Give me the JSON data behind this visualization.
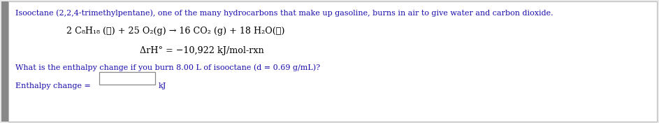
{
  "background_color": "#e8e8e8",
  "panel_color": "#ffffff",
  "text_color": "#000000",
  "blue_color": "#1a0dab",
  "left_bar_color": "#888888",
  "line1": "Isooctane (2,2,4-trimethylpentane), one of the many hydrocarbons that make up gasoline, burns in air to give water and carbon dioxide.",
  "equation": "2 C₈H₁₈ (ℓ) + 25 O₂(g) → 16 CO₂ (g) + 18 H₂O(ℓ)",
  "enthalpy_line": "ΔrH° = −10,922 kJ/mol-rxn",
  "question": "What is the enthalpy change if you burn 8.00 L of isooctane (d = 0.69 g/mL)?",
  "answer_label": "Enthalpy change = ",
  "answer_unit": "kJ",
  "fig_width": 9.43,
  "fig_height": 1.76,
  "dpi": 100
}
